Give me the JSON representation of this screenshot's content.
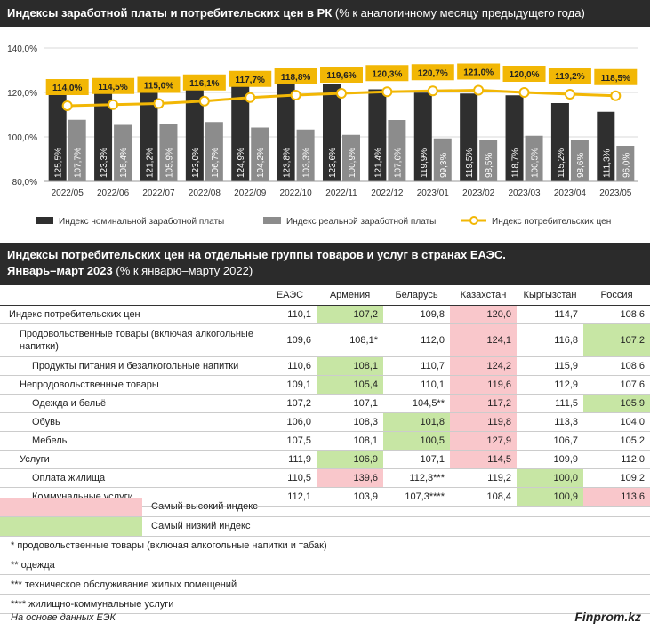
{
  "chart_title_bold": "Индексы заработной платы и потребительских цен в РК",
  "chart_title_rest": " (% к аналогичному месяцу предыдущего года)",
  "chart_data": {
    "type": "bar",
    "categories": [
      "2022/05",
      "2022/06",
      "2022/07",
      "2022/08",
      "2022/09",
      "2022/10",
      "2022/11",
      "2022/12",
      "2023/01",
      "2023/02",
      "2023/03",
      "2023/04",
      "2023/05"
    ],
    "ylim": [
      80,
      140
    ],
    "yticks": [
      "80,0%",
      "100,0%",
      "120,0%",
      "140,0%"
    ],
    "ytick_values": [
      80,
      100,
      120,
      140
    ],
    "grid": true,
    "legend_position": "bottom",
    "series": [
      {
        "name": "Индекс номинальной заработной платы",
        "type": "bar",
        "color": "#2f2f2f",
        "values": [
          125.5,
          123.3,
          121.2,
          123.0,
          124.9,
          123.8,
          123.6,
          121.4,
          119.9,
          119.5,
          118.7,
          115.2,
          111.3
        ],
        "labels": [
          "125,5%",
          "123,3%",
          "121,2%",
          "123,0%",
          "124,9%",
          "123,8%",
          "123,6%",
          "121,4%",
          "119,9%",
          "119,5%",
          "118,7%",
          "115,2%",
          "111,3%"
        ]
      },
      {
        "name": "Индекс реальной заработной платы",
        "type": "bar",
        "color": "#8c8c8c",
        "values": [
          107.7,
          105.4,
          105.9,
          106.7,
          104.2,
          103.3,
          100.9,
          107.6,
          99.3,
          98.5,
          100.5,
          98.6,
          96.0
        ],
        "labels": [
          "107,7%",
          "105,4%",
          "105,9%",
          "106,7%",
          "104,2%",
          "103,3%",
          "100,9%",
          "107,6%",
          "99,3%",
          "98,5%",
          "100,5%",
          "98,6%",
          "96,0%"
        ]
      },
      {
        "name": "Индекс потребительских цен",
        "type": "line",
        "color": "#f2b705",
        "values": [
          114.0,
          114.5,
          115.0,
          116.1,
          117.7,
          118.8,
          119.6,
          120.3,
          120.7,
          121.0,
          120.0,
          119.2,
          118.5
        ],
        "labels": [
          "114,0%",
          "114,5%",
          "115,0%",
          "116,1%",
          "117,7%",
          "118,8%",
          "119,6%",
          "120,3%",
          "120,7%",
          "121,0%",
          "120,0%",
          "119,2%",
          "118,5%"
        ]
      }
    ]
  },
  "table_title_line1": "Индексы потребительских цен на отдельные группы товаров и услуг в странах ЕАЭС.",
  "table_title_line2_bold": "Январь–март 2023",
  "table_title_line2_rest": " (% к январю–марту 2022)",
  "table": {
    "columns": [
      "",
      "ЕАЭС",
      "Армения",
      "Беларусь",
      "Казахстан",
      "Кыргызстан",
      "Россия"
    ],
    "rows": [
      {
        "label": "Индекс потребительских цен",
        "indent": 0,
        "cells": [
          "110,1",
          "107,2",
          "109,8",
          "120,0",
          "114,7",
          "108,6"
        ],
        "hl": [
          "",
          "lo",
          "",
          "hi",
          "",
          ""
        ]
      },
      {
        "label": "Продовольственные товары (включая алкогольные напитки)",
        "indent": 1,
        "tall": true,
        "cells": [
          "109,6",
          "108,1*",
          "112,0",
          "124,1",
          "116,8",
          "107,2"
        ],
        "hl": [
          "",
          "",
          "",
          "hi",
          "",
          "lo"
        ]
      },
      {
        "label": "Продукты питания и безалкогольные напитки",
        "indent": 2,
        "cells": [
          "110,6",
          "108,1",
          "110,7",
          "124,2",
          "115,9",
          "108,6"
        ],
        "hl": [
          "",
          "lo",
          "",
          "hi",
          "",
          ""
        ]
      },
      {
        "label": "Непродовольственные товары",
        "indent": 1,
        "cells": [
          "109,1",
          "105,4",
          "110,1",
          "119,6",
          "112,9",
          "107,6"
        ],
        "hl": [
          "",
          "lo",
          "",
          "hi",
          "",
          ""
        ]
      },
      {
        "label": "Одежда и бельё",
        "indent": 2,
        "cells": [
          "107,2",
          "107,1",
          "104,5**",
          "117,2",
          "111,5",
          "105,9"
        ],
        "hl": [
          "",
          "",
          "",
          "hi",
          "",
          "lo"
        ]
      },
      {
        "label": "Обувь",
        "indent": 2,
        "cells": [
          "106,0",
          "108,3",
          "101,8",
          "119,8",
          "113,3",
          "104,0"
        ],
        "hl": [
          "",
          "",
          "lo",
          "hi",
          "",
          ""
        ]
      },
      {
        "label": "Мебель",
        "indent": 2,
        "cells": [
          "107,5",
          "108,1",
          "100,5",
          "127,9",
          "106,7",
          "105,2"
        ],
        "hl": [
          "",
          "",
          "lo",
          "hi",
          "",
          ""
        ]
      },
      {
        "label": "Услуги",
        "indent": 1,
        "cells": [
          "111,9",
          "106,9",
          "107,1",
          "114,5",
          "109,9",
          "112,0"
        ],
        "hl": [
          "",
          "lo",
          "",
          "hi",
          "",
          ""
        ]
      },
      {
        "label": "Оплата жилища",
        "indent": 2,
        "cells": [
          "110,5",
          "139,6",
          "112,3***",
          "119,2",
          "100,0",
          "109,2"
        ],
        "hl": [
          "",
          "hi",
          "",
          "",
          "lo",
          ""
        ]
      },
      {
        "label": "Коммунальные услуги",
        "indent": 2,
        "cells": [
          "112,1",
          "103,9",
          "107,3****",
          "108,4",
          "100,9",
          "113,6"
        ],
        "hl": [
          "",
          "",
          "",
          "",
          "lo",
          "hi"
        ]
      }
    ]
  },
  "legend_high": "Самый высокий индекс",
  "legend_low": "Самый низкий индекс",
  "color_high": "#f9c7cb",
  "color_low": "#c7e6a4",
  "notes": [
    "* продовольственные товары (включая алкогольные напитки и табак)",
    "** одежда",
    "*** техническое обслуживание жилых помещений",
    "**** жилищно-коммунальные услуги"
  ],
  "source": "На основе данных ЕЭК",
  "brand": "Finprom.kz"
}
